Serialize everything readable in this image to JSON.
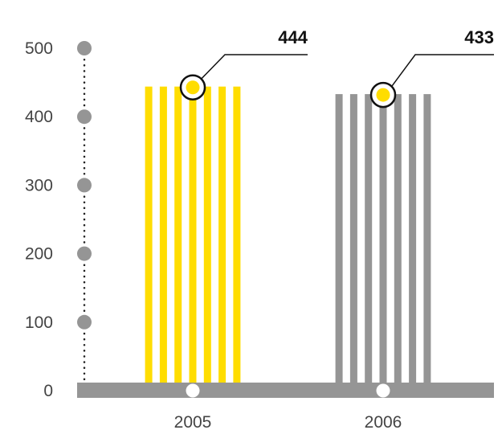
{
  "chart_data": {
    "type": "bar",
    "categories": [
      "2005",
      "2006"
    ],
    "values": [
      444,
      433
    ],
    "data_labels": [
      "444",
      "433"
    ],
    "ylim": [
      0,
      500
    ],
    "yticks": [
      0,
      100,
      200,
      300,
      400,
      500
    ],
    "ytick_labels": [
      "0",
      "100",
      "200",
      "300",
      "400",
      "500"
    ],
    "colors": [
      "#ffdd00",
      "#959595"
    ],
    "axis_color": "#959595",
    "grid": false,
    "legend": "none"
  }
}
